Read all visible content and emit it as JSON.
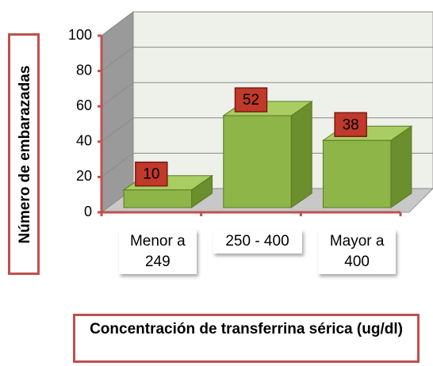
{
  "chart_data": {
    "type": "bar",
    "categories": [
      "Menor a 249",
      "250 - 400",
      "Mayor a 400"
    ],
    "values": [
      10,
      52,
      38
    ],
    "color": "#8db548",
    "label_color": "#c0392b",
    "ylim": [
      0,
      100
    ],
    "yticks": [
      0,
      20,
      40,
      60,
      80,
      100
    ],
    "grid": true,
    "y_label": "Número de embarazadas",
    "x_label": "Concentración de transferrina sérica (ug/dl)"
  }
}
